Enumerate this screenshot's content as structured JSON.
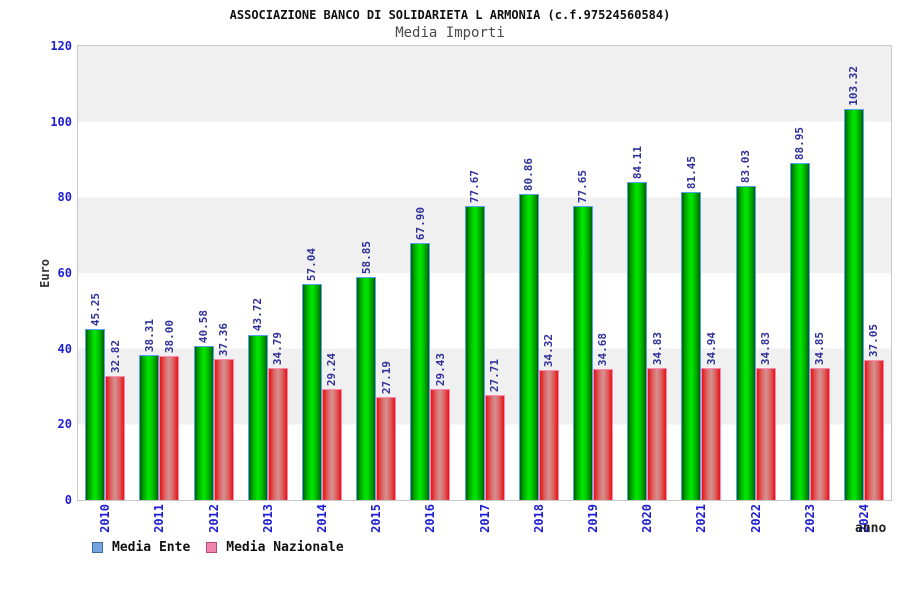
{
  "header": {
    "title": "ASSOCIAZIONE BANCO DI SOLIDARIETA L ARMONIA (c.f.97524560584)",
    "subtitle": "Media Importi"
  },
  "chart_data": {
    "type": "bar",
    "title": "Media Importi",
    "xlabel": "anno",
    "ylabel": "Euro",
    "ylim": [
      0,
      120
    ],
    "y_ticks": [
      0,
      20,
      40,
      60,
      80,
      100,
      120
    ],
    "grid": "alternating horizontal gray/white bands every 20 units, no gridlines",
    "legend_position": "bottom-left",
    "value_label_color": "#32329b",
    "axis_label_color": "#1e1ed2",
    "band_color": "#f0f0f0",
    "categories": [
      "2010",
      "2011",
      "2012",
      "2013",
      "2014",
      "2015",
      "2016",
      "2017",
      "2018",
      "2019",
      "2020",
      "2021",
      "2022",
      "2023",
      "2024"
    ],
    "series": [
      {
        "name": "Media Ente",
        "bar_color": "#00d800",
        "bar_border_color": "#58a2f8",
        "legend_fill": "#72a5de",
        "legend_border": "#3c6ca8",
        "values": [
          45.25,
          38.31,
          40.58,
          43.72,
          57.04,
          58.85,
          67.9,
          77.67,
          80.86,
          77.65,
          84.11,
          81.45,
          83.03,
          88.95,
          103.32
        ]
      },
      {
        "name": "Media Nazionale",
        "bar_color": "#e04040",
        "bar_border_color": "#ff8cb0",
        "legend_fill": "#ee86ae",
        "legend_border": "#b44a78",
        "values": [
          32.82,
          38.0,
          37.36,
          34.79,
          29.24,
          27.19,
          29.43,
          27.71,
          34.32,
          34.68,
          34.83,
          34.94,
          34.83,
          34.85,
          37.05
        ]
      }
    ]
  }
}
